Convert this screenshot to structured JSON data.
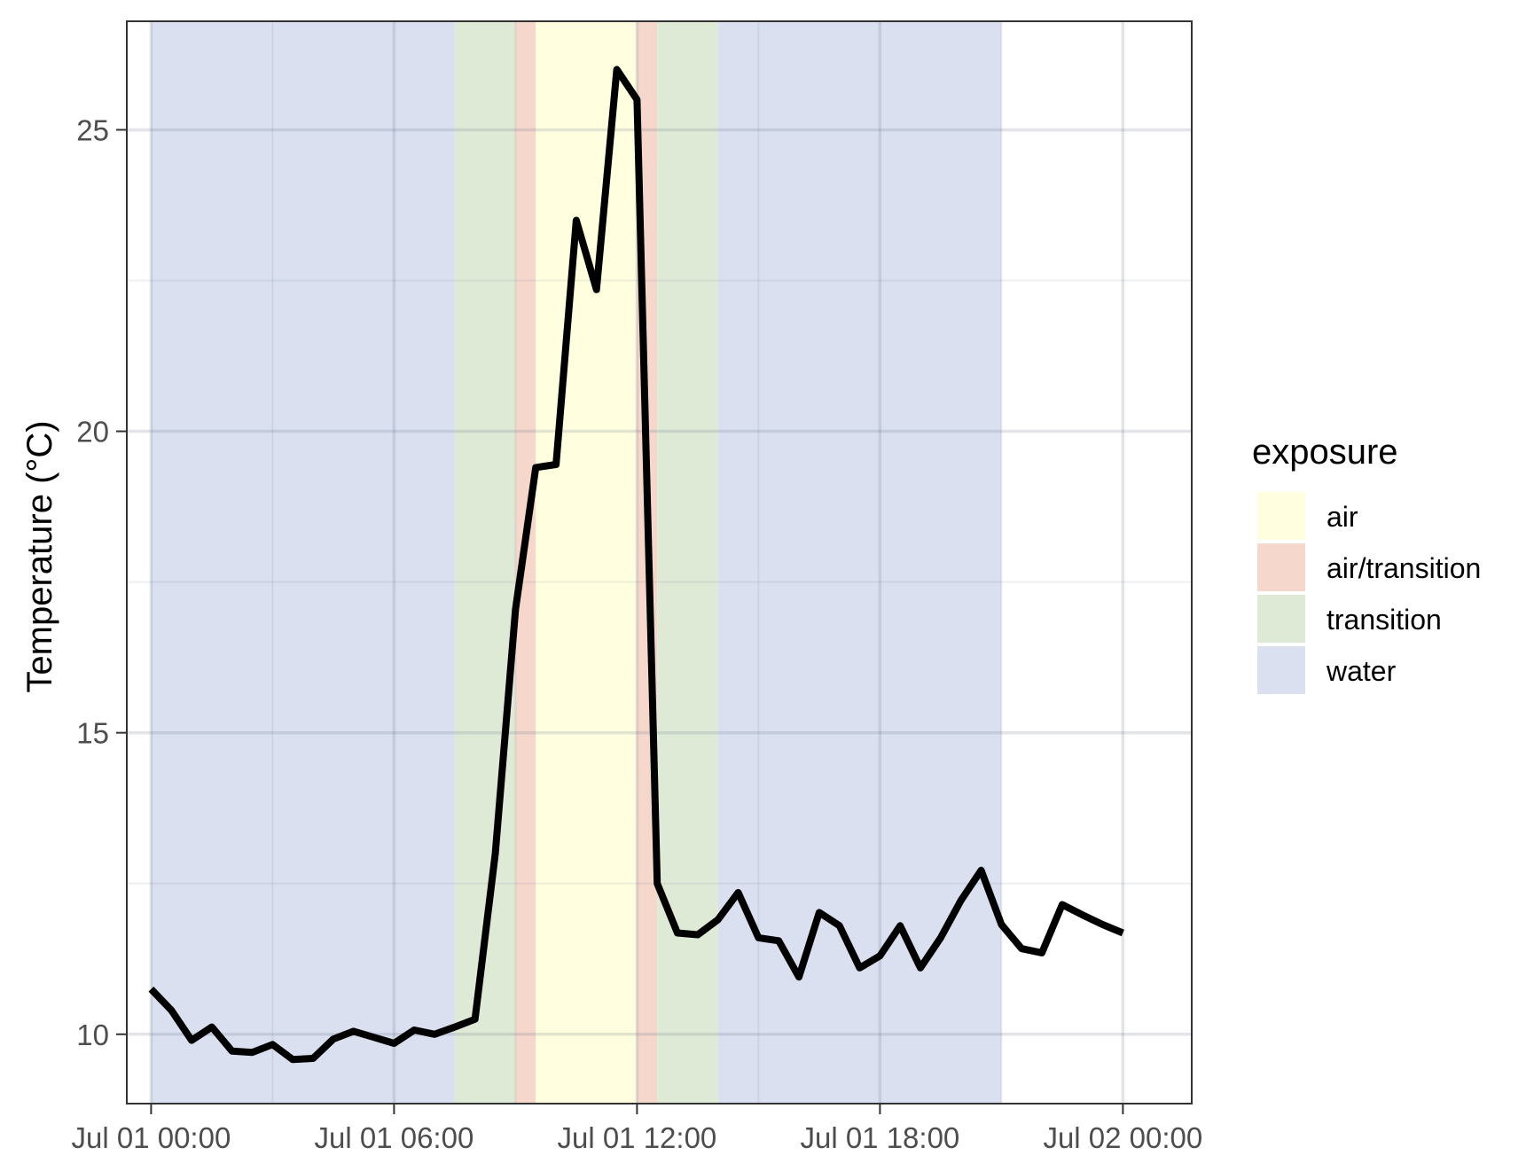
{
  "chart_data": {
    "type": "line",
    "title": "",
    "xlabel": "",
    "ylabel": "Temperature (°C)",
    "x_range_hours": [
      -0.6,
      25.7
    ],
    "ylim": [
      8.85,
      26.8
    ],
    "grid": true,
    "legend_position": "right",
    "x_ticks": [
      {
        "label": "Jul 01 00:00",
        "hour": 0
      },
      {
        "label": "Jul 01 06:00",
        "hour": 6
      },
      {
        "label": "Jul 01 12:00",
        "hour": 12
      },
      {
        "label": "Jul 01 18:00",
        "hour": 18
      },
      {
        "label": "Jul 02 00:00",
        "hour": 24
      }
    ],
    "x_minor_hours": [
      3,
      9,
      15,
      21
    ],
    "y_ticks": [
      10,
      15,
      20,
      25
    ],
    "y_minor": [
      12.5,
      17.5,
      22.5
    ],
    "legend": {
      "title": "exposure",
      "items": [
        {
          "key": "air",
          "label": "air",
          "color": "#FFFFE0"
        },
        {
          "key": "air_transition",
          "label": "air/transition",
          "color": "#F5D7CC"
        },
        {
          "key": "transition",
          "label": "transition",
          "color": "#DFEAD6"
        },
        {
          "key": "water",
          "label": "water",
          "color": "#DAE0F0"
        }
      ]
    },
    "bands": [
      {
        "exposure": "water",
        "start_hour": 0,
        "end_hour": 7.5
      },
      {
        "exposure": "transition",
        "start_hour": 7.5,
        "end_hour": 9.0
      },
      {
        "exposure": "air_transition",
        "start_hour": 9.0,
        "end_hour": 9.5
      },
      {
        "exposure": "air",
        "start_hour": 9.5,
        "end_hour": 12.0
      },
      {
        "exposure": "air_transition",
        "start_hour": 12.0,
        "end_hour": 12.5
      },
      {
        "exposure": "transition",
        "start_hour": 12.5,
        "end_hour": 14.0
      },
      {
        "exposure": "water",
        "start_hour": 14.0,
        "end_hour": 21.0
      }
    ],
    "series": [
      {
        "line_color": "#000000",
        "x_hours": [
          0,
          0.5,
          1.0,
          1.5,
          2.0,
          2.5,
          3.0,
          3.5,
          4.0,
          4.5,
          5.0,
          5.5,
          6.0,
          6.5,
          7.0,
          7.5,
          8.0,
          8.5,
          9.0,
          9.5,
          10.0,
          10.5,
          11.0,
          11.5,
          12.0,
          12.5,
          13.0,
          13.5,
          14.0,
          14.5,
          15.0,
          15.5,
          16.0,
          16.5,
          17.0,
          17.5,
          18.0,
          18.5,
          19.0,
          19.5,
          20.0,
          20.5,
          21.0,
          21.5,
          22.0,
          22.5,
          23.0,
          23.5,
          24.0
        ],
        "y": [
          10.75,
          10.4,
          9.9,
          10.12,
          9.72,
          9.7,
          9.83,
          9.58,
          9.6,
          9.92,
          10.05,
          9.95,
          9.85,
          10.07,
          10.0,
          10.12,
          10.25,
          13.0,
          17.05,
          19.4,
          19.45,
          23.5,
          22.35,
          26.0,
          25.5,
          12.5,
          11.68,
          11.65,
          11.9,
          12.35,
          11.6,
          11.55,
          10.95,
          12.02,
          11.8,
          11.1,
          11.3,
          11.8,
          11.1,
          11.6,
          12.22,
          12.72,
          11.82,
          11.42,
          11.35,
          12.15,
          11.98,
          11.82,
          11.68
        ]
      }
    ]
  }
}
